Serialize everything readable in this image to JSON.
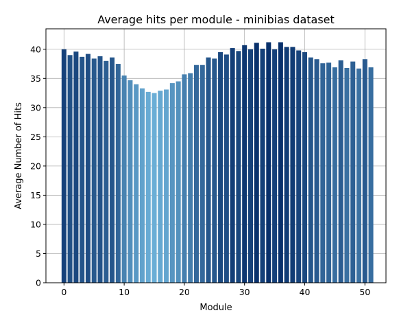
{
  "chart_data": {
    "type": "bar",
    "title": "Average hits per module - minibias dataset",
    "xlabel": "Module",
    "ylabel": "Average Number of Hits",
    "xlim": [
      -3,
      53.5
    ],
    "ylim": [
      0,
      43.5
    ],
    "xticks": [
      0,
      10,
      20,
      30,
      40,
      50
    ],
    "yticks": [
      0,
      5,
      10,
      15,
      20,
      25,
      30,
      35,
      40
    ],
    "grid": true,
    "colormap": "Blues",
    "color_low": "#6aaed6",
    "color_high": "#08306b",
    "x": [
      0,
      1,
      2,
      3,
      4,
      5,
      6,
      7,
      8,
      9,
      10,
      11,
      12,
      13,
      14,
      15,
      16,
      17,
      18,
      19,
      20,
      21,
      22,
      23,
      24,
      25,
      26,
      27,
      28,
      29,
      30,
      31,
      32,
      33,
      34,
      35,
      36,
      37,
      38,
      39,
      40,
      41,
      42,
      43,
      44,
      45,
      46,
      47,
      48,
      49,
      50,
      51
    ],
    "values": [
      40.0,
      39.0,
      39.6,
      38.7,
      39.2,
      38.4,
      38.8,
      38.0,
      38.6,
      37.5,
      35.5,
      34.7,
      34.0,
      33.3,
      32.7,
      32.5,
      32.9,
      33.1,
      34.2,
      34.5,
      35.7,
      35.9,
      37.3,
      37.3,
      38.6,
      38.4,
      39.5,
      39.1,
      40.2,
      39.7,
      40.7,
      40.0,
      41.1,
      40.1,
      41.2,
      40.0,
      41.2,
      40.4,
      40.4,
      39.8,
      39.5,
      38.6,
      38.3,
      37.6,
      37.7,
      36.9,
      38.1,
      36.8,
      37.9,
      36.7,
      38.3,
      36.9
    ]
  }
}
